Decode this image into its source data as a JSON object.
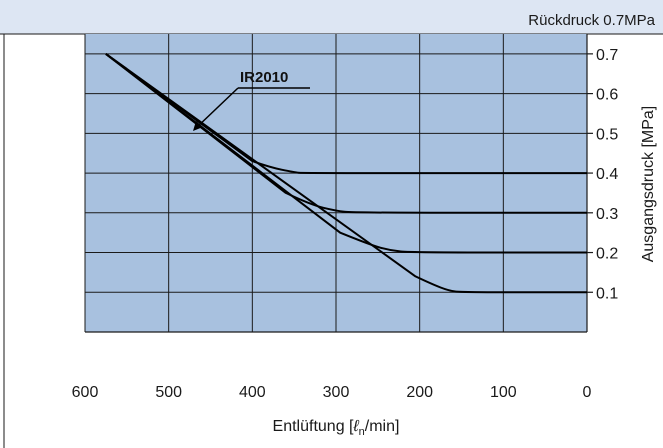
{
  "header": {
    "text": "Rückdruck 0.7MPa"
  },
  "colors": {
    "plot_bg": "#a8c1df",
    "header_bg": "#dde6f3",
    "grid": "#1a1a1a",
    "curve": "#000000"
  },
  "chart_data": {
    "type": "line",
    "title": "",
    "xlabel_parts": [
      "Entlüftung [",
      "ℓ",
      "n",
      "/min]"
    ],
    "ylabel": "Ausgangsdruck [MPa]",
    "xlim": [
      600,
      0
    ],
    "ylim": [
      0,
      0.75
    ],
    "xticks": [
      600,
      500,
      400,
      300,
      200,
      100,
      0
    ],
    "xtick_labels": [
      "600",
      "500",
      "400",
      "300",
      "200",
      "100",
      "0"
    ],
    "yticks": [
      0.1,
      0.2,
      0.3,
      0.4,
      0.5,
      0.6,
      0.7
    ],
    "ytick_labels": [
      "0.1",
      "0.2",
      "0.3",
      "0.4",
      "0.5",
      "0.6",
      "0.7"
    ],
    "grid": true,
    "annotation": "IR2010",
    "series": [
      {
        "values": [
          [
            575,
            0.7
          ],
          [
            400,
            0.43
          ],
          [
            380,
            0.415
          ],
          [
            350,
            0.402
          ],
          [
            340,
            0.4
          ],
          [
            0,
            0.4
          ]
        ]
      },
      {
        "values": [
          [
            575,
            0.7
          ],
          [
            360,
            0.35
          ],
          [
            330,
            0.32
          ],
          [
            300,
            0.305
          ],
          [
            280,
            0.3
          ],
          [
            0,
            0.3
          ]
        ]
      },
      {
        "values": [
          [
            575,
            0.7
          ],
          [
            295,
            0.25
          ],
          [
            260,
            0.22
          ],
          [
            235,
            0.205
          ],
          [
            210,
            0.2
          ],
          [
            0,
            0.2
          ]
        ]
      },
      {
        "values": [
          [
            575,
            0.7
          ],
          [
            205,
            0.14
          ],
          [
            185,
            0.12
          ],
          [
            165,
            0.104
          ],
          [
            150,
            0.1
          ],
          [
            0,
            0.1
          ]
        ]
      }
    ]
  }
}
